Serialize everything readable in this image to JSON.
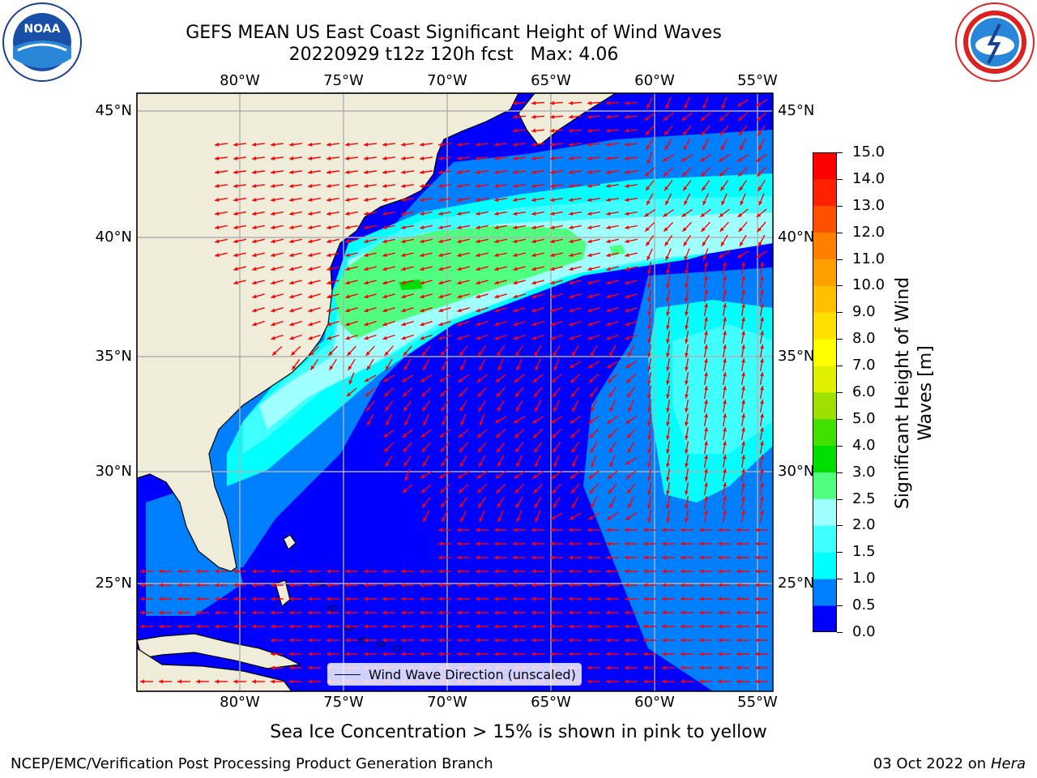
{
  "title": {
    "line1": "GEFS MEAN US East Coast Significant Height of Wind Waves",
    "line2": "20220929 t12z 120h fcst   Max: 4.06"
  },
  "logos": {
    "left": "noaa-logo",
    "left_text": "NOAA",
    "right": "nws-logo"
  },
  "map": {
    "lon_labels": [
      "80°W",
      "75°W",
      "70°W",
      "65°W",
      "60°W",
      "55°W"
    ],
    "lat_labels": [
      "45°N",
      "40°N",
      "35°N",
      "30°N",
      "25°N"
    ],
    "colors": {
      "land": "#EFEDDA",
      "coast": "#000000",
      "grid": "#B0B0B0",
      "arrow": "#FF0000"
    }
  },
  "colorbar": {
    "label": "Significant Height of Wind Waves [m]",
    "label_line1": "Significant Height of Wind",
    "label_line2": "Waves [m]",
    "ticks": [
      "0.0",
      "0.5",
      "1.0",
      "1.5",
      "2.0",
      "2.5",
      "3.0",
      "4.0",
      "5.0",
      "6.0",
      "7.0",
      "8.0",
      "9.0",
      "10.0",
      "11.0",
      "12.0",
      "13.0",
      "14.0",
      "15.0"
    ],
    "colors": [
      "#0000FF",
      "#0080FF",
      "#00FFFF",
      "#40FFFF",
      "#A0FFFF",
      "#50FF80",
      "#00DD00",
      "#40E000",
      "#A0E000",
      "#E0F000",
      "#FFFF00",
      "#FFE000",
      "#FFC000",
      "#FFA000",
      "#FF8000",
      "#FF5000",
      "#FF2000",
      "#FF0000"
    ]
  },
  "legend": {
    "label": "Wind Wave Direction (unscaled)"
  },
  "subtitle": "Sea Ice Concentration > 15% is shown in pink to yellow",
  "footer": {
    "left": "NCEP/EMC/Verification Post Processing Product Generation Branch",
    "date": "03 Oct 2022 on ",
    "host": "Hera"
  }
}
